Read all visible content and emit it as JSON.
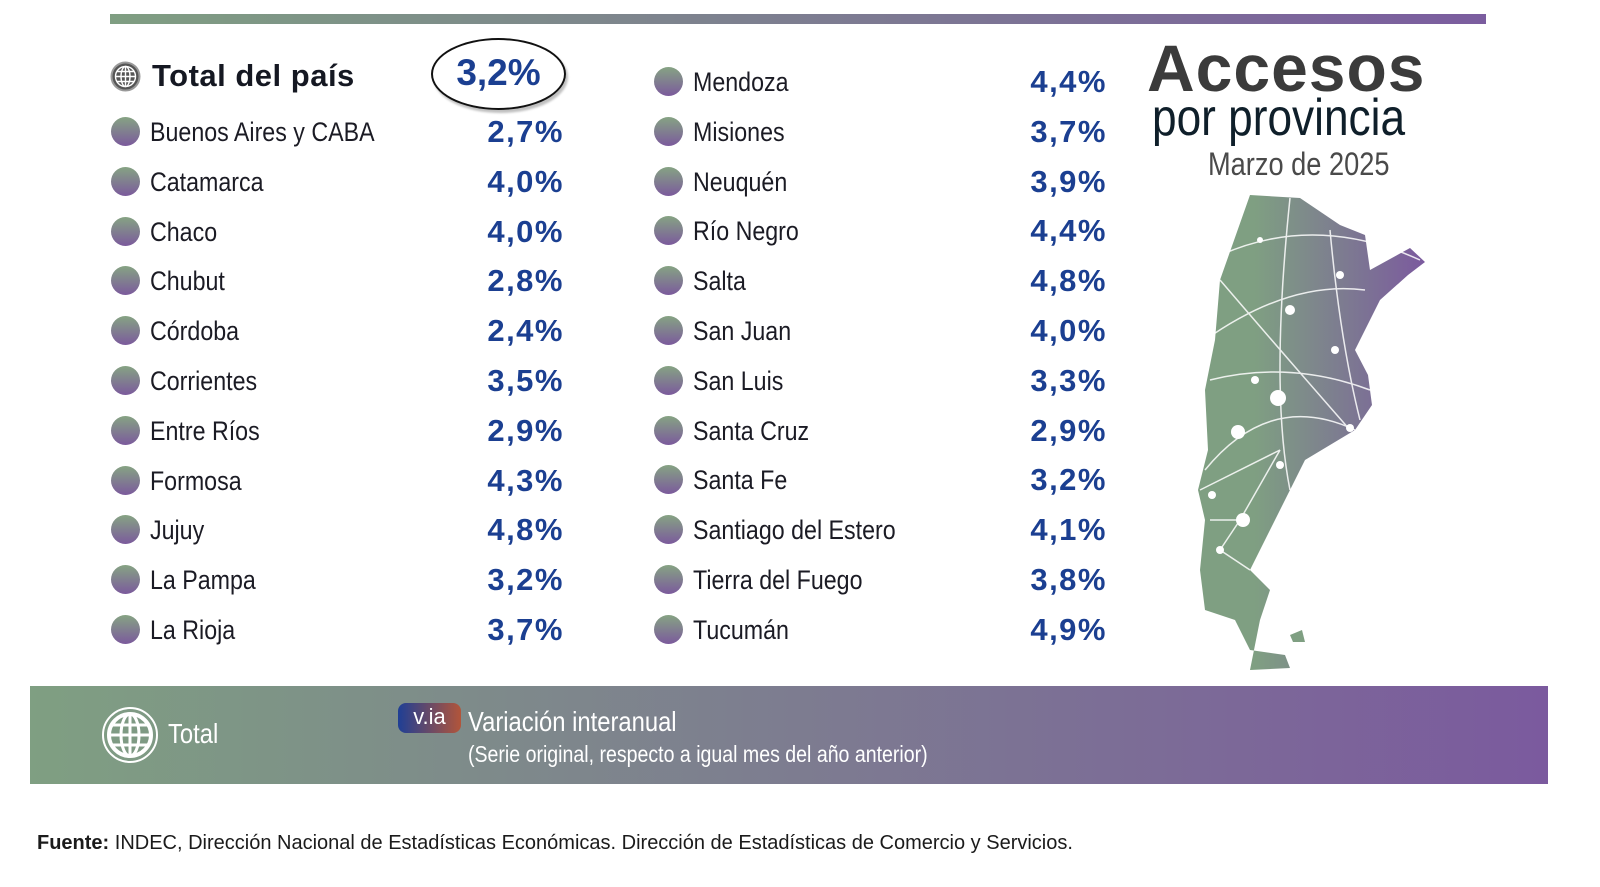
{
  "title": {
    "line1": "Accesos",
    "line2": "por provincia",
    "period": "Marzo de 2025"
  },
  "total": {
    "label": "Total del país",
    "value": "3,2%",
    "icon": "globe-icon"
  },
  "left_column": [
    {
      "name": "Buenos Aires y CABA",
      "value": "2,7%"
    },
    {
      "name": "Catamarca",
      "value": "4,0%"
    },
    {
      "name": "Chaco",
      "value": "4,0%"
    },
    {
      "name": "Chubut",
      "value": "2,8%"
    },
    {
      "name": "Córdoba",
      "value": "2,4%"
    },
    {
      "name": "Corrientes",
      "value": "3,5%"
    },
    {
      "name": "Entre Ríos",
      "value": "2,9%"
    },
    {
      "name": "Formosa",
      "value": "4,3%"
    },
    {
      "name": "Jujuy",
      "value": "4,8%"
    },
    {
      "name": "La Pampa",
      "value": "3,2%"
    },
    {
      "name": "La Rioja",
      "value": "3,7%"
    }
  ],
  "right_column": [
    {
      "name": "Mendoza",
      "value": "4,4%"
    },
    {
      "name": "Misiones",
      "value": "3,7%"
    },
    {
      "name": "Neuquén",
      "value": "3,9%"
    },
    {
      "name": "Río Negro",
      "value": "4,4%"
    },
    {
      "name": "Salta",
      "value": "4,8%"
    },
    {
      "name": "San Juan",
      "value": "4,0%"
    },
    {
      "name": "San Luis",
      "value": "3,3%"
    },
    {
      "name": "Santa Cruz",
      "value": "2,9%"
    },
    {
      "name": "Santa Fe",
      "value": "3,2%"
    },
    {
      "name": "Santiago del Estero",
      "value": "4,1%"
    },
    {
      "name": "Tierra del Fuego",
      "value": "3,8%"
    },
    {
      "name": "Tucumán",
      "value": "4,9%"
    }
  ],
  "legend": {
    "total_label": "Total",
    "badge": "v.ia",
    "variation_title": "Variación interanual",
    "variation_note": "(Serie original, respecto a igual mes del año anterior)"
  },
  "source": {
    "label": "Fuente:",
    "text": " INDEC, Dirección Nacional de Estadísticas Económicas. Dirección de Estadísticas de Comercio y Servicios."
  },
  "colors": {
    "value": "#1b3f91",
    "gradient_start": "#7f9f82",
    "gradient_end": "#7b5a9e"
  }
}
